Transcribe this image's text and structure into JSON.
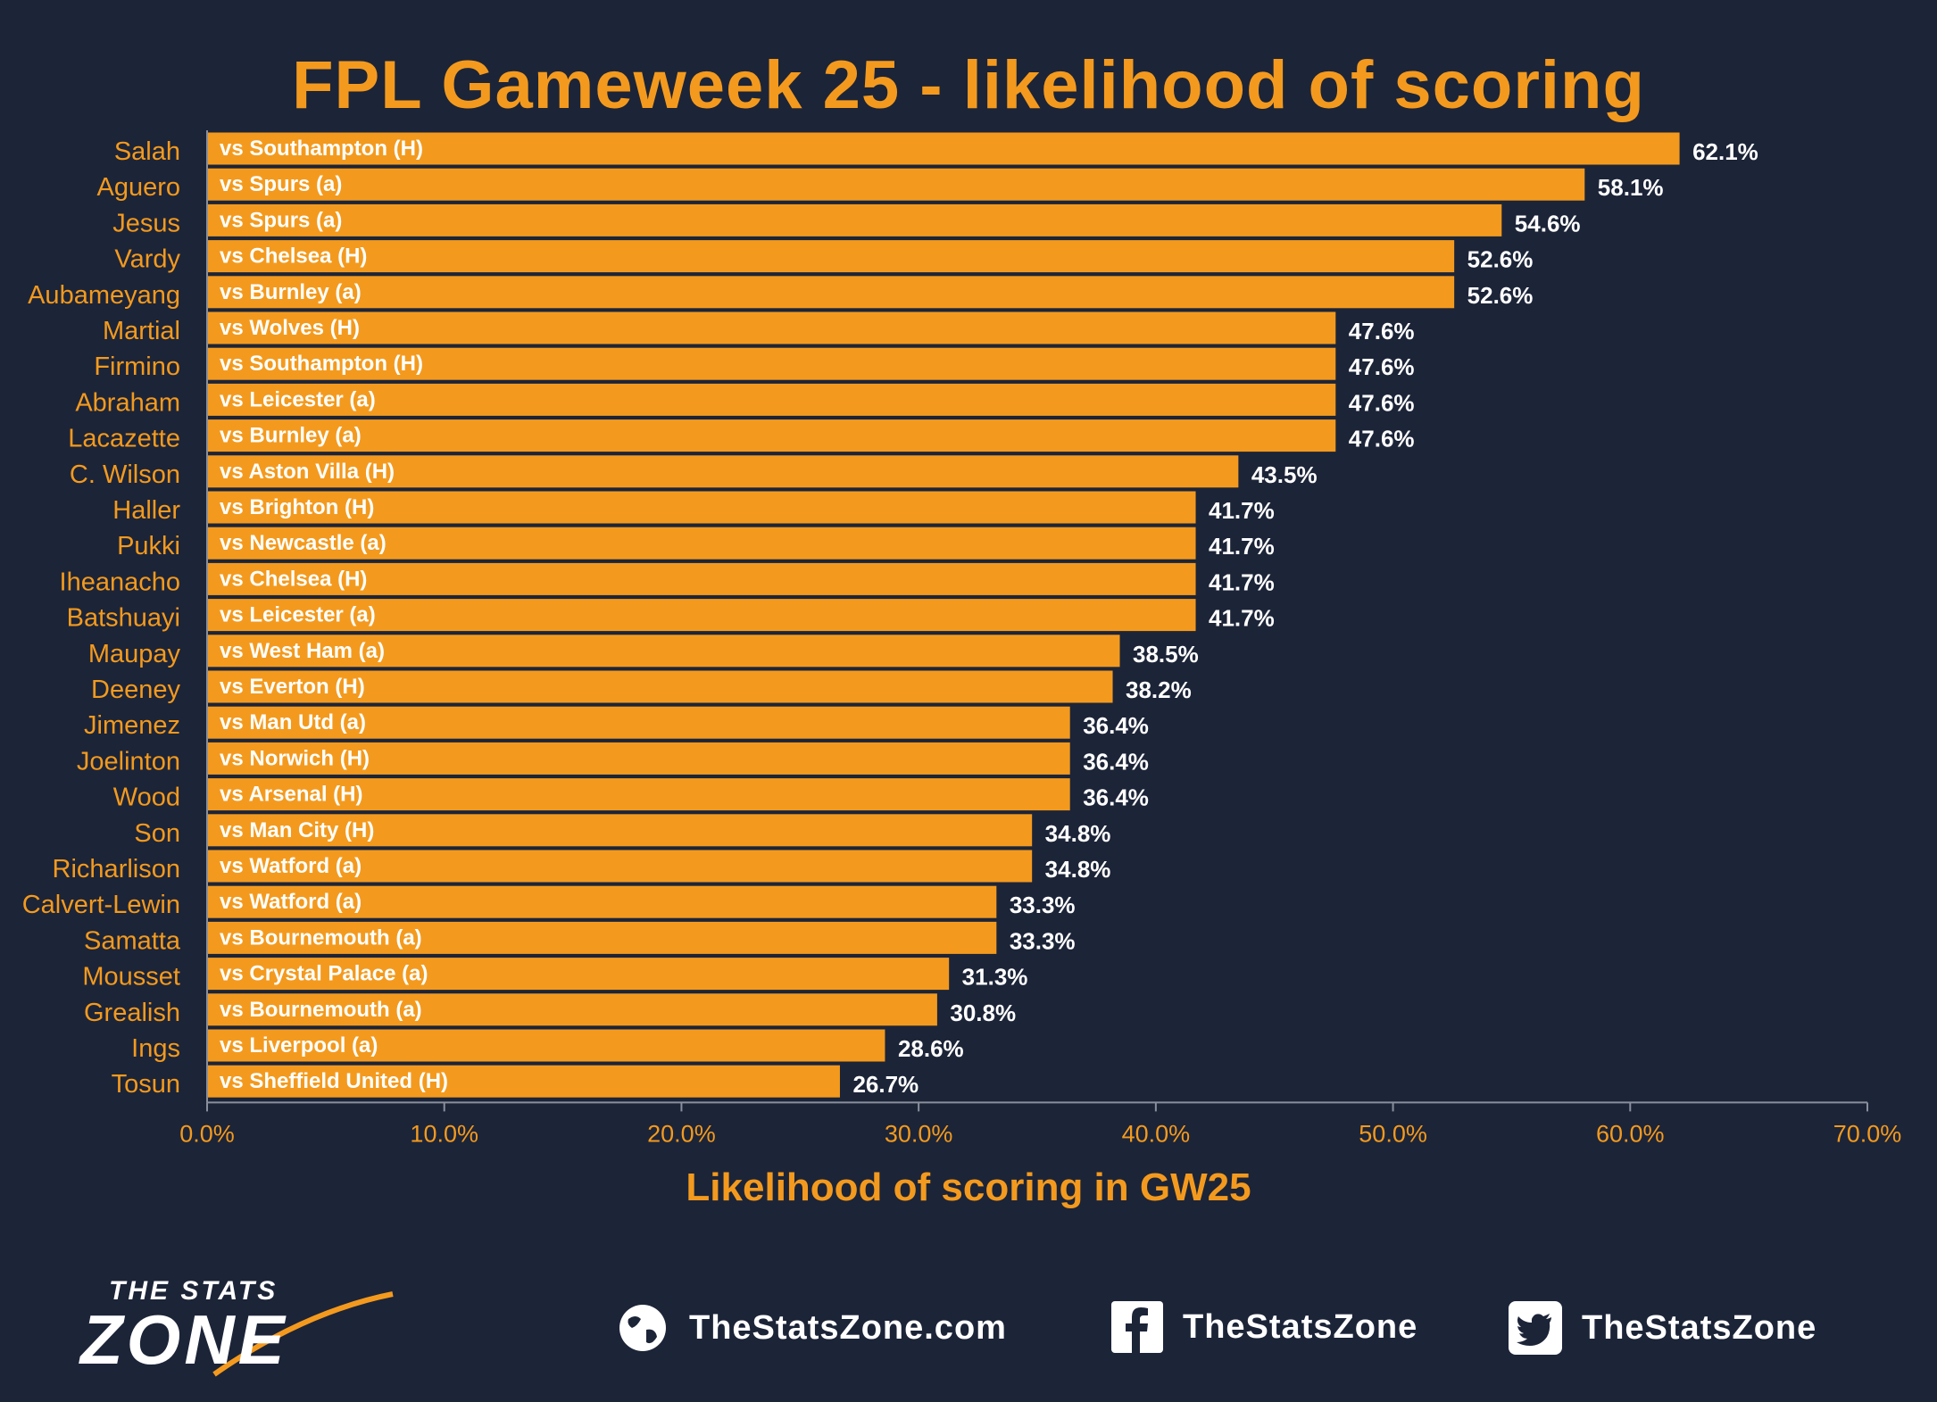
{
  "title": "FPL Gameweek 25 - likelihood of scoring",
  "chart_data": {
    "type": "bar",
    "orientation": "horizontal",
    "title": "FPL Gameweek 25 - likelihood of scoring",
    "xlabel": "Likelihood of scoring in GW25",
    "ylabel": "",
    "xlim": [
      0,
      70
    ],
    "xticks": [
      "0.0%",
      "10.0%",
      "20.0%",
      "30.0%",
      "40.0%",
      "50.0%",
      "60.0%",
      "70.0%"
    ],
    "bar_color": "#f39a1e",
    "categories": [
      "Salah",
      "Aguero",
      "Jesus",
      "Vardy",
      "Aubameyang",
      "Martial",
      "Firmino",
      "Abraham",
      "Lacazette",
      "C. Wilson",
      "Haller",
      "Pukki",
      "Iheanacho",
      "Batshuayi",
      "Maupay",
      "Deeney",
      "Jimenez",
      "Joelinton",
      "Wood",
      "Son",
      "Richarlison",
      "Calvert-Lewin",
      "Samatta",
      "Mousset",
      "Grealish",
      "Ings",
      "Tosun"
    ],
    "fixtures": [
      "vs Southampton (H)",
      "vs Spurs (a)",
      "vs Spurs (a)",
      "vs Chelsea (H)",
      "vs Burnley (a)",
      "vs Wolves (H)",
      "vs Southampton (H)",
      "vs Leicester (a)",
      "vs Burnley (a)",
      "vs Aston Villa (H)",
      "vs Brighton (H)",
      "vs Newcastle (a)",
      "vs Chelsea (H)",
      "vs Leicester (a)",
      "vs West Ham (a)",
      "vs Everton (H)",
      "vs Man Utd (a)",
      "vs Norwich (H)",
      "vs Arsenal (H)",
      "vs Man City (H)",
      "vs Watford (a)",
      "vs Watford (a)",
      "vs Bournemouth (a)",
      "vs Crystal Palace (a)",
      "vs Bournemouth (a)",
      "vs Liverpool (a)",
      "vs Sheffield United (H)"
    ],
    "values": [
      62.1,
      58.1,
      54.6,
      52.6,
      52.6,
      47.6,
      47.6,
      47.6,
      47.6,
      43.5,
      41.7,
      41.7,
      41.7,
      41.7,
      38.5,
      38.2,
      36.4,
      36.4,
      36.4,
      34.8,
      34.8,
      33.3,
      33.3,
      31.3,
      30.8,
      28.6,
      26.7
    ],
    "value_labels": [
      "62.1%",
      "58.1%",
      "54.6%",
      "52.6%",
      "52.6%",
      "47.6%",
      "47.6%",
      "47.6%",
      "47.6%",
      "43.5%",
      "41.7%",
      "41.7%",
      "41.7%",
      "41.7%",
      "38.5%",
      "38.2%",
      "36.4%",
      "36.4%",
      "36.4%",
      "34.8%",
      "34.8%",
      "33.3%",
      "33.3%",
      "31.3%",
      "30.8%",
      "28.6%",
      "26.7%"
    ]
  },
  "footer": {
    "logo_top": "THE STATS",
    "logo_main": "ZONE",
    "website": "TheStatsZone.com",
    "facebook": "TheStatsZone",
    "twitter": "TheStatsZone",
    "icons": [
      "globe-icon",
      "facebook-icon",
      "twitter-icon"
    ]
  }
}
